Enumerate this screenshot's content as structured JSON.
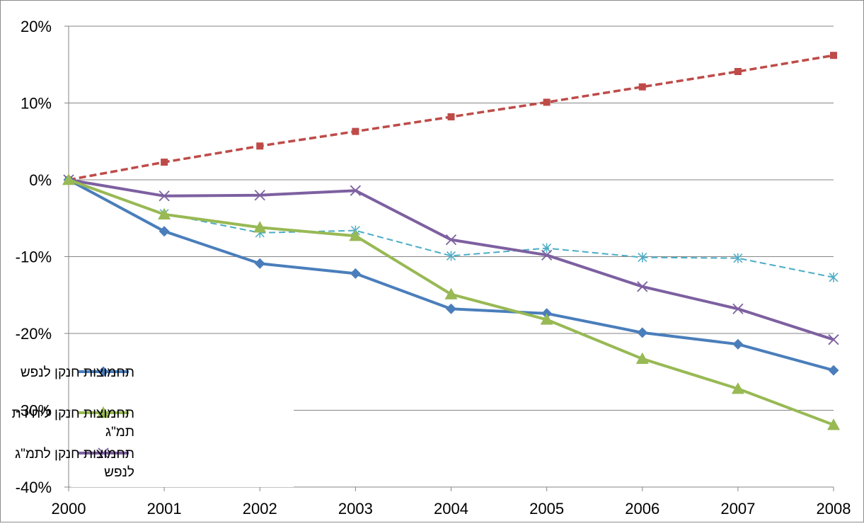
{
  "chart_data": {
    "type": "line",
    "title": "",
    "xlabel": "",
    "ylabel": "",
    "categories": [
      "2000",
      "2001",
      "2002",
      "2003",
      "2004",
      "2005",
      "2006",
      "2007",
      "2008"
    ],
    "ylim": [
      -40,
      20
    ],
    "y_ticks": [
      20,
      10,
      0,
      -10,
      -20,
      -30,
      -40
    ],
    "y_tick_labels": [
      "20%",
      "10%",
      "0%",
      "-10%",
      "-20%",
      "-30%",
      "-40%"
    ],
    "grid": "horizontal",
    "legend_position": "bottom-left",
    "series": [
      {
        "key": "s1",
        "name": "תחמוצות חנקן לנפש",
        "values": [
          0,
          -6.7,
          -10.9,
          -12.2,
          -16.8,
          -17.4,
          -19.9,
          -21.4,
          -24.8
        ],
        "color": "#4a7ebb",
        "marker": "diamond",
        "dash": "solid",
        "in_legend": true
      },
      {
        "key": "s2",
        "name": "",
        "values": [
          0,
          2.3,
          4.4,
          6.3,
          8.2,
          10.1,
          12.1,
          14.1,
          16.2
        ],
        "color": "#be4b48",
        "marker": "square",
        "dash": "dashed",
        "in_legend": false
      },
      {
        "key": "s3",
        "name": "תחמוצות חנקן ליחידת תמ\"ג",
        "values": [
          0,
          -4.5,
          -6.2,
          -7.3,
          -14.9,
          -18.2,
          -23.3,
          -27.2,
          -31.9
        ],
        "color": "#98b954",
        "marker": "triangle",
        "dash": "solid",
        "in_legend": true
      },
      {
        "key": "s4",
        "name": "תחמוצות חנקן לתמ\"ג לנפש",
        "values": [
          0,
          -2.1,
          -2.0,
          -1.4,
          -7.8,
          -9.8,
          -13.9,
          -16.8,
          -20.8
        ],
        "color": "#7d60a0",
        "marker": "x",
        "dash": "solid",
        "in_legend": true
      },
      {
        "key": "s5",
        "name": "",
        "values": [
          0,
          -4.4,
          -6.9,
          -6.6,
          -9.9,
          -8.9,
          -10.1,
          -10.2,
          -12.7
        ],
        "color": "#4bacc6",
        "marker": "star",
        "dash": "dashed",
        "in_legend": false
      }
    ],
    "legend": {
      "entries": [
        {
          "series": "s1",
          "lines": [
            "תחמוצות חנקן לנפש"
          ]
        },
        {
          "series": "s3",
          "lines": [
            "תחמוצות חנקן ליחידת",
            "תמ\"ג"
          ]
        },
        {
          "series": "s4",
          "lines": [
            "תחמוצות חנקן לתמ\"ג",
            "לנפש"
          ]
        }
      ]
    }
  }
}
